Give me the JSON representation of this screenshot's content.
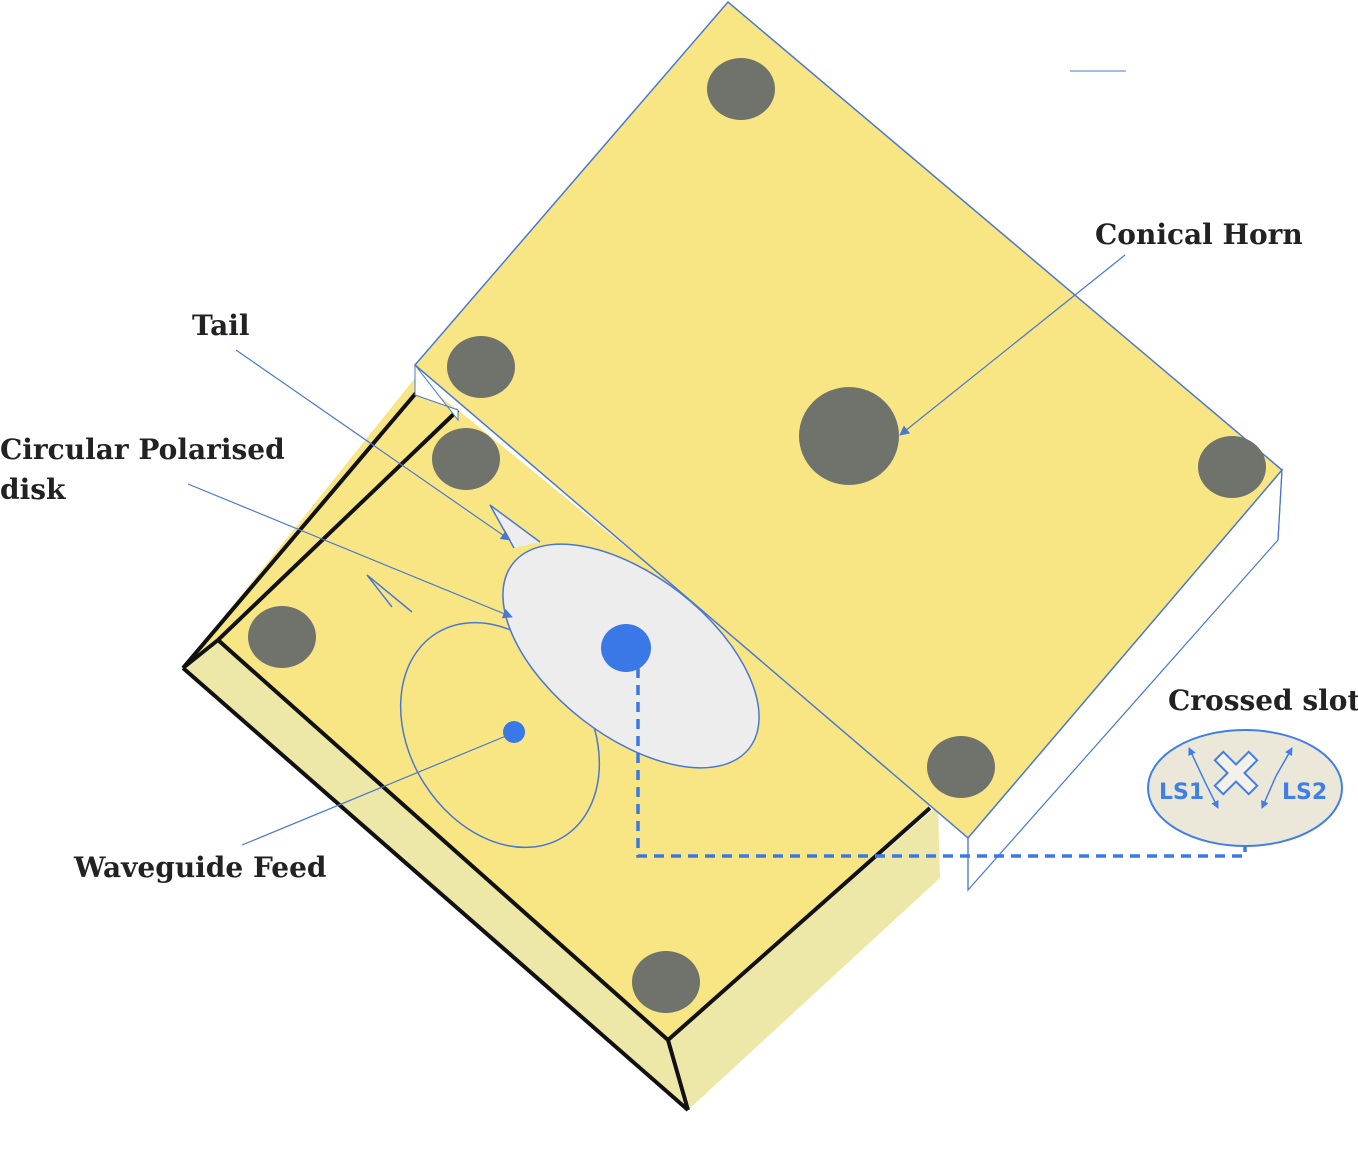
{
  "labels": {
    "conical_horn": "Conical Horn",
    "tail": "Tail",
    "cp_disk_line1": "Circular Polarised",
    "cp_disk_line2": "disk",
    "waveguide_feed": "Waveguide Feed",
    "crossed_slot": "Crossed slot",
    "ls1": "LS1",
    "ls2": "LS2"
  },
  "colors": {
    "block_top": "#f8e684",
    "block_side": "#ede8a8",
    "bolt": "#6f736c",
    "edge_blue": "#4a78d0",
    "disk_fill": "#ededed",
    "feed_blue": "#3b78e7",
    "slot_fill": "#ece8d9"
  }
}
